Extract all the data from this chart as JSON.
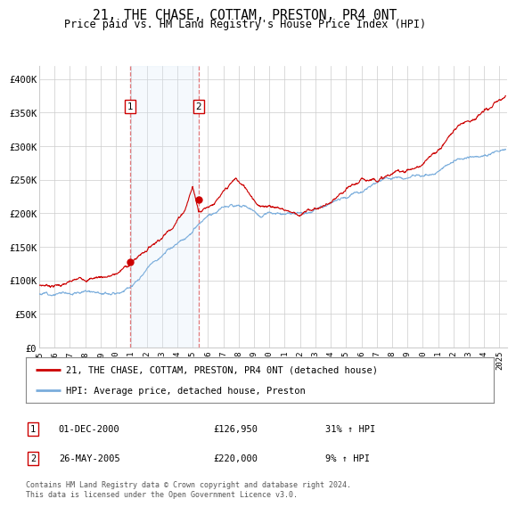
{
  "title": "21, THE CHASE, COTTAM, PRESTON, PR4 0NT",
  "subtitle": "Price paid vs. HM Land Registry's House Price Index (HPI)",
  "ylabel_ticks": [
    "£0",
    "£50K",
    "£100K",
    "£150K",
    "£200K",
    "£250K",
    "£300K",
    "£350K",
    "£400K"
  ],
  "ylim": [
    0,
    420000
  ],
  "xlim_start": 1995.0,
  "xlim_end": 2025.5,
  "sale1_date": 2000.92,
  "sale1_price": 126950,
  "sale2_date": 2005.38,
  "sale2_price": 220000,
  "legend_line1": "21, THE CHASE, COTTAM, PRESTON, PR4 0NT (detached house)",
  "legend_line2": "HPI: Average price, detached house, Preston",
  "annotation1_date": "01-DEC-2000",
  "annotation1_price": "£126,950",
  "annotation1_hpi": "31% ↑ HPI",
  "annotation2_date": "26-MAY-2005",
  "annotation2_price": "£220,000",
  "annotation2_hpi": "9% ↑ HPI",
  "footer": "Contains HM Land Registry data © Crown copyright and database right 2024.\nThis data is licensed under the Open Government Licence v3.0.",
  "house_color": "#cc0000",
  "hpi_color": "#7aaddc",
  "shade_color": "#d8eaf8",
  "vline_color": "#dd4444",
  "background_color": "#ffffff",
  "grid_color": "#cccccc"
}
